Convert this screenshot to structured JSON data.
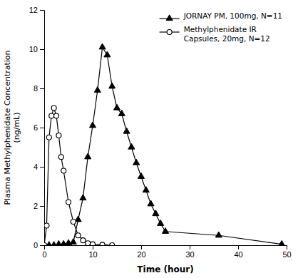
{
  "chart_data": {
    "type": "line",
    "xlabel": "Time (hour)",
    "ylabel": "Plasma Methylphenidate Concentration\n(ng/mL)",
    "xlim": [
      0,
      50
    ],
    "ylim": [
      0,
      12
    ],
    "xticks": [
      0,
      10,
      20,
      30,
      40,
      50
    ],
    "yticks": [
      0,
      2,
      4,
      6,
      8,
      10,
      12
    ],
    "grid": false,
    "legend": "upper right",
    "series": [
      {
        "name": "JORNAY PM, 100mg, N=11",
        "color": "#000000",
        "marker": "triangle",
        "x": [
          0,
          1,
          2,
          3,
          4,
          5,
          6,
          7,
          8,
          9,
          10,
          11,
          12,
          13,
          14,
          15,
          16,
          17,
          18,
          19,
          20,
          21,
          22,
          23,
          24,
          25,
          36,
          49
        ],
        "values": [
          0,
          0,
          0,
          0.05,
          0.05,
          0.1,
          0.15,
          1.3,
          2.4,
          4.5,
          6.1,
          7.9,
          10.1,
          9.7,
          8.1,
          7.0,
          6.7,
          5.8,
          5.0,
          4.2,
          3.5,
          2.8,
          2.1,
          1.6,
          1.1,
          0.7,
          0.5,
          0.05
        ]
      },
      {
        "name": "Methylphenidate IR\nCapsules, 20mg, N=12",
        "color": "#000000",
        "marker": "circle-open",
        "x": [
          0,
          0.5,
          1.0,
          1.5,
          2.0,
          2.5,
          3.0,
          3.5,
          4.0,
          5.0,
          6.0,
          7.0,
          8.0,
          9.0,
          10.0,
          12.0,
          14.0
        ],
        "values": [
          0,
          1.0,
          5.5,
          6.6,
          7.0,
          6.6,
          5.6,
          4.5,
          3.8,
          2.2,
          1.2,
          0.5,
          0.25,
          0.1,
          0.05,
          0.02,
          0.0
        ]
      }
    ]
  }
}
